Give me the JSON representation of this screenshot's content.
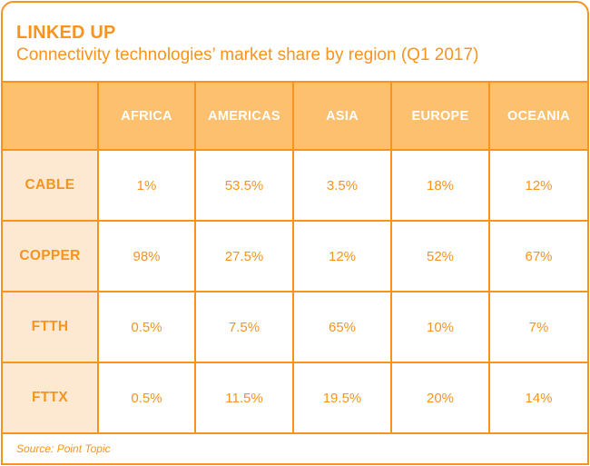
{
  "header": {
    "title": "LINKED UP",
    "subtitle": "Connectivity technologies’ market share by region (Q1 2017)"
  },
  "footer": {
    "source": "Source: Point Topic"
  },
  "colors": {
    "accent": "#f7941d",
    "header_fill": "#fdc06f",
    "row_header_fill": "#fde9d2",
    "header_text": "#ffffff"
  },
  "chart_data": {
    "type": "table",
    "title": "LINKED UP",
    "subtitle": "Connectivity technologies’ market share by region (Q1 2017)",
    "columns": [
      "AFRICA",
      "AMERICAS",
      "ASIA",
      "EUROPE",
      "OCEANIA"
    ],
    "rows": [
      {
        "label": "CABLE",
        "values": [
          "1%",
          "53.5%",
          "3.5%",
          "18%",
          "12%"
        ]
      },
      {
        "label": "COPPER",
        "values": [
          "98%",
          "27.5%",
          "12%",
          "52%",
          "67%"
        ]
      },
      {
        "label": "FTTH",
        "values": [
          "0.5%",
          "7.5%",
          "65%",
          "10%",
          "7%"
        ]
      },
      {
        "label": "FTTX",
        "values": [
          "0.5%",
          "11.5%",
          "19.5%",
          "20%",
          "14%"
        ]
      }
    ],
    "source": "Source: Point Topic"
  }
}
